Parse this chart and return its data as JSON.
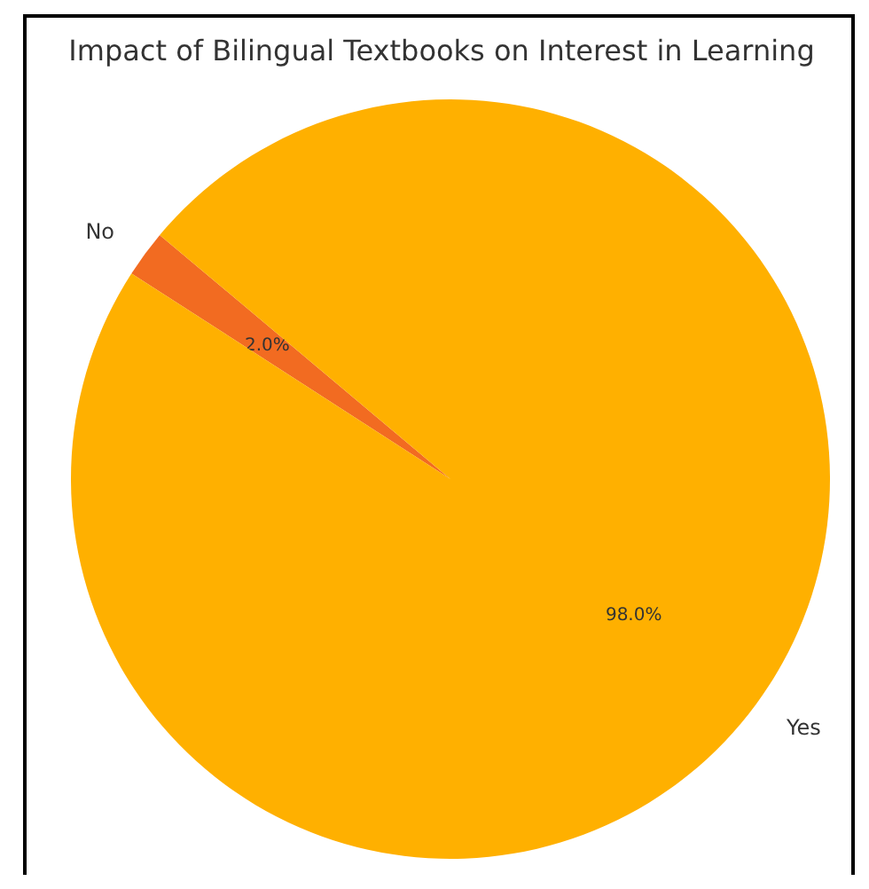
{
  "chart_data": {
    "type": "pie",
    "title": "Impact of Bilingual Textbooks on Interest in Learning",
    "categories": [
      "No",
      "Yes"
    ],
    "values": [
      2,
      98
    ],
    "colors": [
      "#f26b21",
      "#ffb000"
    ],
    "value_labels": [
      "2.0%",
      "98.0%"
    ]
  }
}
